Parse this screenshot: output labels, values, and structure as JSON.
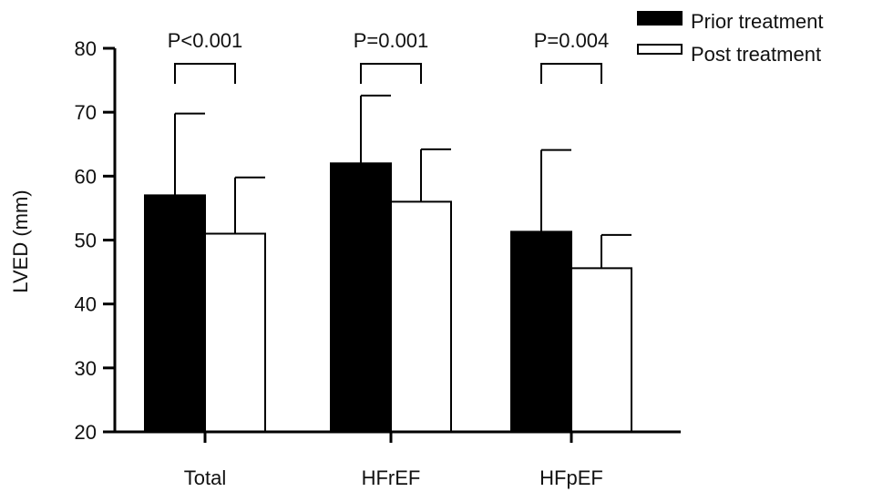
{
  "chart_data": {
    "type": "bar",
    "title": "",
    "xlabel": "",
    "ylabel": "LVED (mm)",
    "ylim": [
      20,
      80
    ],
    "yticks": [
      20,
      30,
      40,
      50,
      60,
      70,
      80
    ],
    "ytick_labels": [
      "20",
      "30",
      "40",
      "50",
      "60",
      "70",
      "80"
    ],
    "categories": [
      "Total",
      "HFrEF",
      "HFpEF"
    ],
    "series": [
      {
        "name": "Prior treatment",
        "values": [
          57,
          62,
          51.3
        ],
        "error_upper": [
          69.8,
          72.6,
          64.1
        ],
        "color": "#000000"
      },
      {
        "name": "Post treatment",
        "values": [
          51,
          56,
          45.6
        ],
        "error_upper": [
          59.8,
          64.2,
          50.8
        ],
        "color": "#ffffff"
      }
    ],
    "annotations": [
      "P<0.001",
      "P=0.001",
      "P=0.004"
    ],
    "legend_position": "top-right",
    "grid": false
  }
}
